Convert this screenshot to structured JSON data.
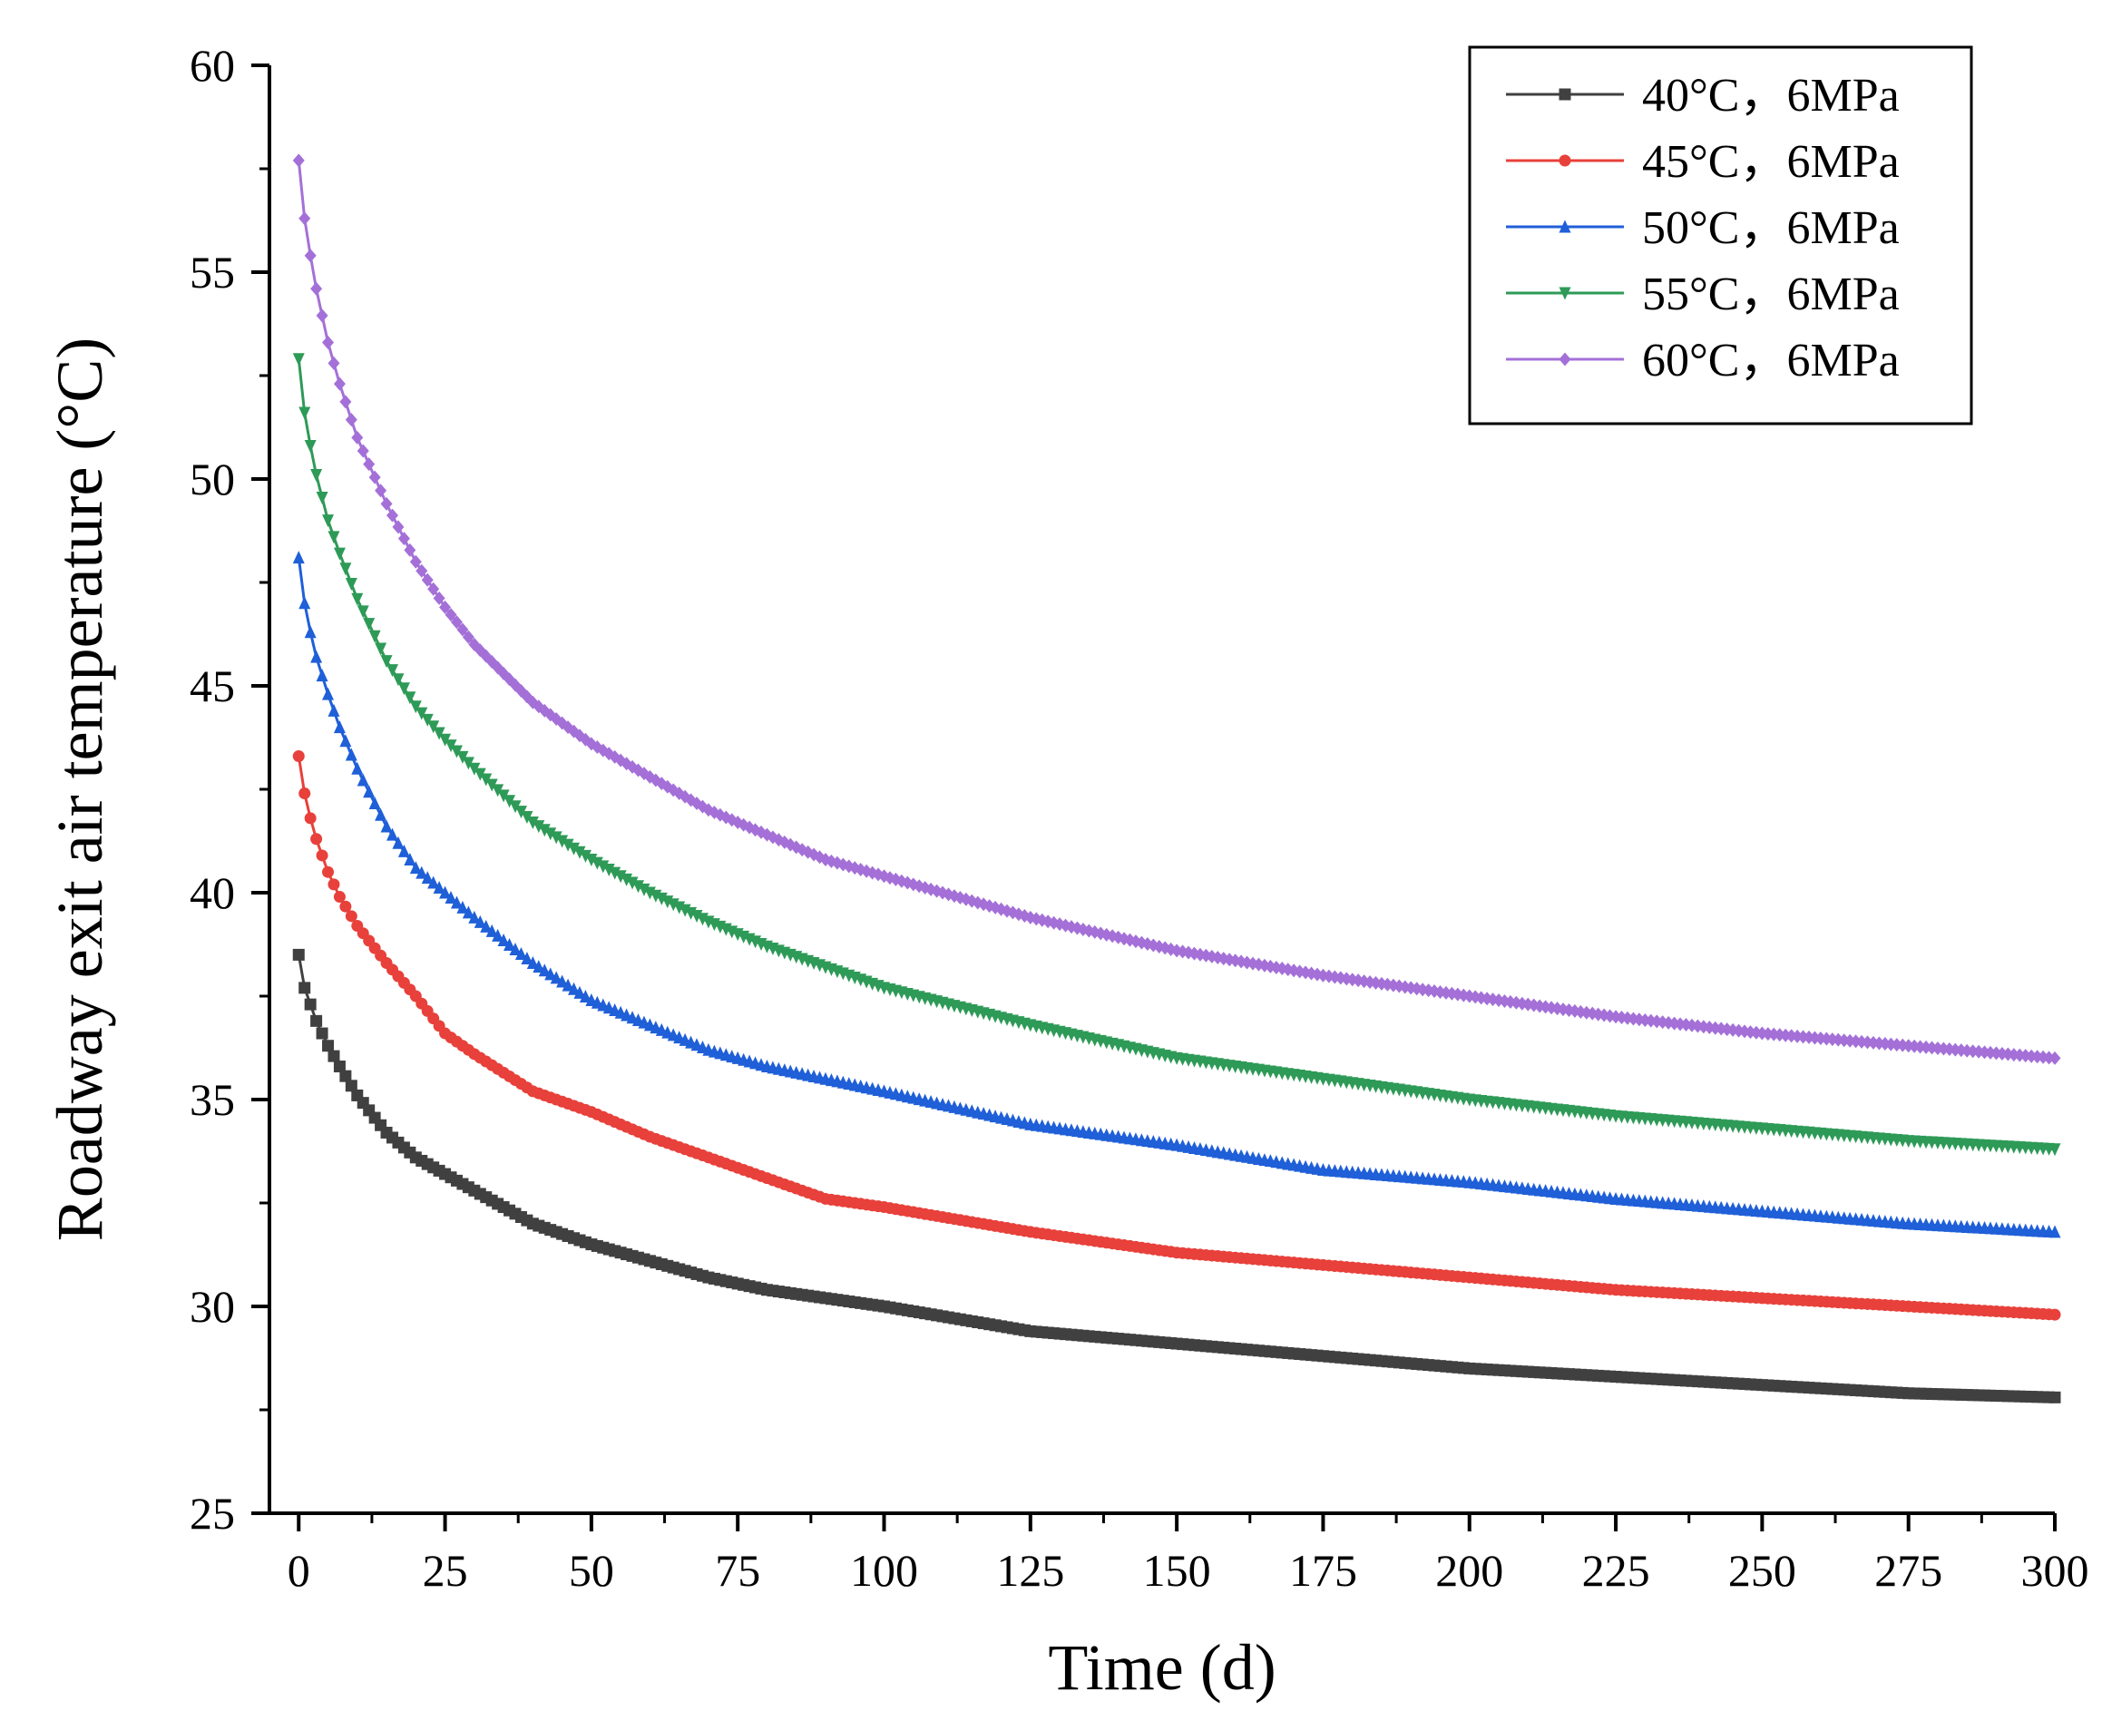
{
  "chart_data": {
    "type": "line",
    "title": "",
    "xlabel": "Time (d)",
    "ylabel": "Roadway exit air temperature (°C)",
    "xlim": [
      -5,
      300
    ],
    "ylim": [
      25,
      60
    ],
    "x_ticks": [
      0,
      25,
      50,
      75,
      100,
      125,
      150,
      175,
      200,
      225,
      250,
      275,
      300
    ],
    "y_ticks": [
      25,
      30,
      35,
      40,
      45,
      50,
      55,
      60
    ],
    "x_tick_labels": [
      "0",
      "25",
      "50",
      "75",
      "100",
      "125",
      "150",
      "175",
      "200",
      "225",
      "250",
      "275",
      "300"
    ],
    "y_tick_labels": [
      "25",
      "30",
      "35",
      "40",
      "45",
      "50",
      "55",
      "60"
    ],
    "legend_position": "top-right",
    "marker_interval_days": 1,
    "key_x": [
      0,
      1,
      2,
      3,
      5,
      7,
      10,
      15,
      20,
      25,
      30,
      40,
      50,
      60,
      70,
      80,
      90,
      100,
      125,
      150,
      175,
      200,
      225,
      250,
      275,
      300
    ],
    "series": [
      {
        "name": "40°C，6MPa",
        "color": "#404040",
        "marker": "square",
        "values": [
          38.5,
          37.7,
          37.3,
          36.9,
          36.3,
          35.8,
          35.1,
          34.2,
          33.6,
          33.2,
          32.8,
          32.0,
          31.5,
          31.1,
          30.7,
          30.4,
          30.2,
          30.0,
          29.4,
          29.1,
          28.8,
          28.5,
          28.3,
          28.1,
          27.9,
          27.8
        ]
      },
      {
        "name": "45°C，6MPa",
        "color": "#e8403a",
        "marker": "circle",
        "values": [
          43.3,
          42.4,
          41.8,
          41.3,
          40.5,
          39.9,
          39.2,
          38.3,
          37.5,
          36.6,
          36.1,
          35.2,
          34.7,
          34.1,
          33.6,
          33.1,
          32.6,
          32.4,
          31.8,
          31.3,
          31.0,
          30.7,
          30.4,
          30.2,
          30.0,
          29.8
        ]
      },
      {
        "name": "50°C，6MPa",
        "color": "#1f5fd8",
        "marker": "triangle-up",
        "values": [
          48.1,
          47.0,
          46.3,
          45.7,
          44.8,
          44.0,
          43.0,
          41.6,
          40.6,
          40.0,
          39.4,
          38.3,
          37.4,
          36.8,
          36.2,
          35.8,
          35.5,
          35.2,
          34.4,
          33.9,
          33.3,
          33.0,
          32.6,
          32.3,
          32.0,
          31.8
        ]
      },
      {
        "name": "55°C，6MPa",
        "color": "#2e9a57",
        "marker": "triangle-down",
        "values": [
          52.9,
          51.6,
          50.8,
          50.1,
          49.0,
          48.2,
          47.1,
          45.6,
          44.5,
          43.7,
          43.0,
          41.7,
          40.8,
          40.0,
          39.3,
          38.7,
          38.2,
          37.7,
          36.8,
          36.0,
          35.5,
          35.0,
          34.6,
          34.3,
          34.0,
          33.8
        ]
      },
      {
        "name": "60°C，6MPa",
        "color": "#a470d8",
        "marker": "diamond",
        "values": [
          57.7,
          56.3,
          55.4,
          54.6,
          53.3,
          52.3,
          51.0,
          49.4,
          48.0,
          46.9,
          46.0,
          44.6,
          43.6,
          42.8,
          42.0,
          41.4,
          40.8,
          40.4,
          39.4,
          38.6,
          38.0,
          37.5,
          37.0,
          36.6,
          36.3,
          36.0
        ]
      }
    ]
  }
}
